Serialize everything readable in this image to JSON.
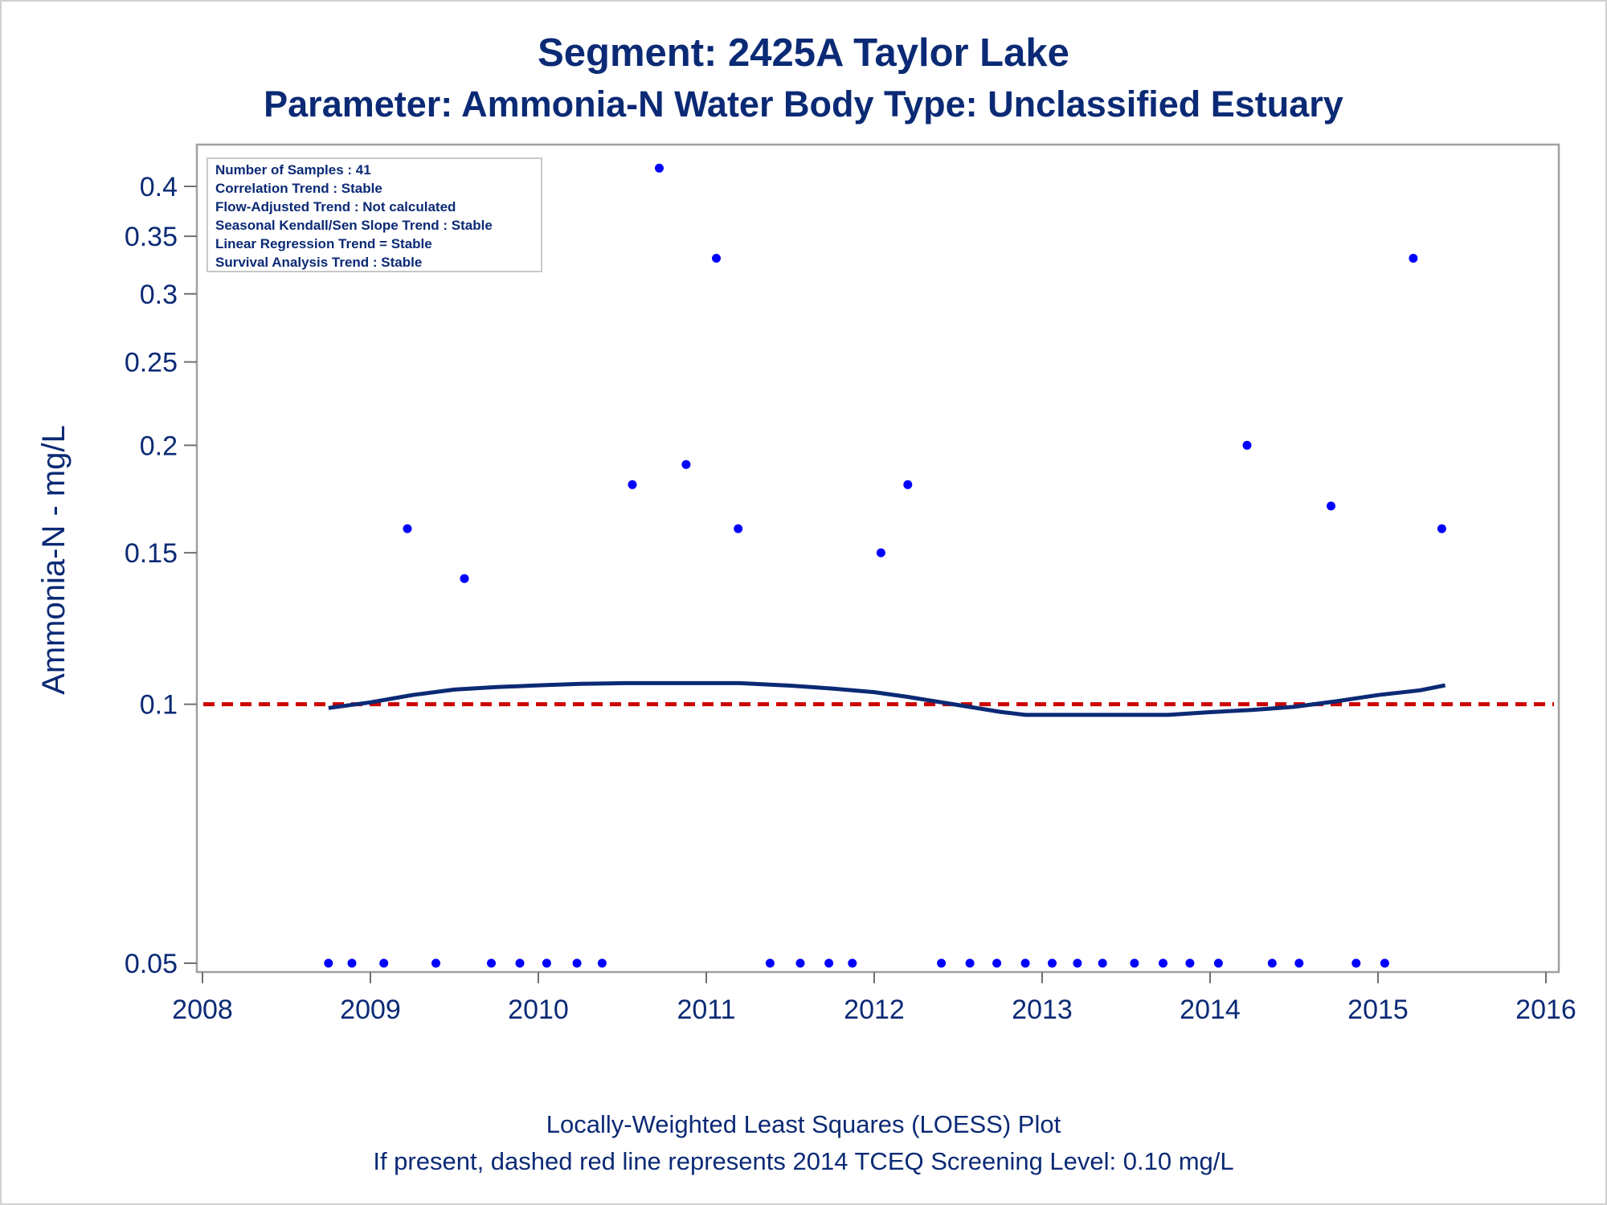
{
  "chart_data": {
    "type": "scatter",
    "title": "Segment: 2425A  Taylor Lake",
    "subtitle": "Parameter: Ammonia-N   Water Body Type: Unclassified Estuary",
    "ylabel": "Ammonia-N - mg/L",
    "xlabel": "",
    "footnotes": [
      "Locally-Weighted Least Squares (LOESS) Plot",
      "If present, dashed red line represents 2014 TCEQ Screening Level: 0.10 mg/L"
    ],
    "info_box": [
      "Number of Samples : 41",
      "Correlation Trend : Stable",
      "Flow-Adjusted Trend : Not calculated",
      "Seasonal Kendall/Sen Slope Trend : Stable",
      "Linear Regression Trend = Stable",
      "Survival Analysis Trend : Stable"
    ],
    "x_scale": "linear",
    "y_scale": "log",
    "xlim": [
      2008,
      2016
    ],
    "ylim": [
      0.0485,
      0.428
    ],
    "x_ticks": [
      2008,
      2009,
      2010,
      2011,
      2012,
      2013,
      2014,
      2015,
      2016
    ],
    "x_tick_labels": [
      "2008",
      "2009",
      "2010",
      "2011",
      "2012",
      "2013",
      "2014",
      "2015",
      "2016"
    ],
    "y_ticks": [
      0.05,
      0.1,
      0.15,
      0.2,
      0.25,
      0.3,
      0.35,
      0.4
    ],
    "y_tick_labels": [
      "0.05",
      "0.1",
      "0.15",
      "0.2",
      "0.25",
      "0.3",
      "0.35",
      "0.4"
    ],
    "grid": false,
    "colors": {
      "points": "#0000ff",
      "loess": "#0b2a75",
      "screening": "#cc0000",
      "text": "#0b2a75",
      "axis": "#a0a0a0"
    },
    "screening_level": 0.1,
    "points": [
      {
        "x": 2008.75,
        "y": 0.05
      },
      {
        "x": 2008.89,
        "y": 0.05
      },
      {
        "x": 2009.08,
        "y": 0.05
      },
      {
        "x": 2009.22,
        "y": 0.16
      },
      {
        "x": 2009.39,
        "y": 0.05
      },
      {
        "x": 2009.56,
        "y": 0.14
      },
      {
        "x": 2009.72,
        "y": 0.05
      },
      {
        "x": 2009.89,
        "y": 0.05
      },
      {
        "x": 2010.05,
        "y": 0.05
      },
      {
        "x": 2010.23,
        "y": 0.05
      },
      {
        "x": 2010.38,
        "y": 0.05
      },
      {
        "x": 2010.56,
        "y": 0.18
      },
      {
        "x": 2010.72,
        "y": 0.42
      },
      {
        "x": 2010.88,
        "y": 0.19
      },
      {
        "x": 2011.06,
        "y": 0.33
      },
      {
        "x": 2011.19,
        "y": 0.16
      },
      {
        "x": 2011.38,
        "y": 0.05
      },
      {
        "x": 2011.56,
        "y": 0.05
      },
      {
        "x": 2011.73,
        "y": 0.05
      },
      {
        "x": 2011.87,
        "y": 0.05
      },
      {
        "x": 2012.04,
        "y": 0.15
      },
      {
        "x": 2012.2,
        "y": 0.18
      },
      {
        "x": 2012.4,
        "y": 0.05
      },
      {
        "x": 2012.57,
        "y": 0.05
      },
      {
        "x": 2012.73,
        "y": 0.05
      },
      {
        "x": 2012.9,
        "y": 0.05
      },
      {
        "x": 2013.06,
        "y": 0.05
      },
      {
        "x": 2013.21,
        "y": 0.05
      },
      {
        "x": 2013.36,
        "y": 0.05
      },
      {
        "x": 2013.55,
        "y": 0.05
      },
      {
        "x": 2013.72,
        "y": 0.05
      },
      {
        "x": 2013.88,
        "y": 0.05
      },
      {
        "x": 2014.05,
        "y": 0.05
      },
      {
        "x": 2014.22,
        "y": 0.2
      },
      {
        "x": 2014.37,
        "y": 0.05
      },
      {
        "x": 2014.53,
        "y": 0.05
      },
      {
        "x": 2014.72,
        "y": 0.17
      },
      {
        "x": 2014.87,
        "y": 0.05
      },
      {
        "x": 2015.04,
        "y": 0.05
      },
      {
        "x": 2015.21,
        "y": 0.33
      },
      {
        "x": 2015.38,
        "y": 0.16
      }
    ],
    "loess": [
      {
        "x": 2008.75,
        "y": 0.099
      },
      {
        "x": 2009.0,
        "y": 0.1005
      },
      {
        "x": 2009.25,
        "y": 0.1025
      },
      {
        "x": 2009.5,
        "y": 0.104
      },
      {
        "x": 2009.75,
        "y": 0.1047
      },
      {
        "x": 2010.0,
        "y": 0.1052
      },
      {
        "x": 2010.25,
        "y": 0.1056
      },
      {
        "x": 2010.5,
        "y": 0.1058
      },
      {
        "x": 2010.75,
        "y": 0.1058
      },
      {
        "x": 2011.0,
        "y": 0.1058
      },
      {
        "x": 2011.2,
        "y": 0.1058
      },
      {
        "x": 2011.5,
        "y": 0.1051
      },
      {
        "x": 2011.75,
        "y": 0.1043
      },
      {
        "x": 2012.0,
        "y": 0.1033
      },
      {
        "x": 2012.2,
        "y": 0.102
      },
      {
        "x": 2012.5,
        "y": 0.0998
      },
      {
        "x": 2012.75,
        "y": 0.098
      },
      {
        "x": 2012.9,
        "y": 0.0972
      },
      {
        "x": 2013.25,
        "y": 0.0972
      },
      {
        "x": 2013.5,
        "y": 0.0972
      },
      {
        "x": 2013.75,
        "y": 0.0972
      },
      {
        "x": 2014.0,
        "y": 0.0979
      },
      {
        "x": 2014.25,
        "y": 0.0985
      },
      {
        "x": 2014.5,
        "y": 0.0993
      },
      {
        "x": 2014.75,
        "y": 0.1008
      },
      {
        "x": 2015.0,
        "y": 0.1025
      },
      {
        "x": 2015.25,
        "y": 0.1038
      },
      {
        "x": 2015.4,
        "y": 0.1052
      }
    ]
  }
}
